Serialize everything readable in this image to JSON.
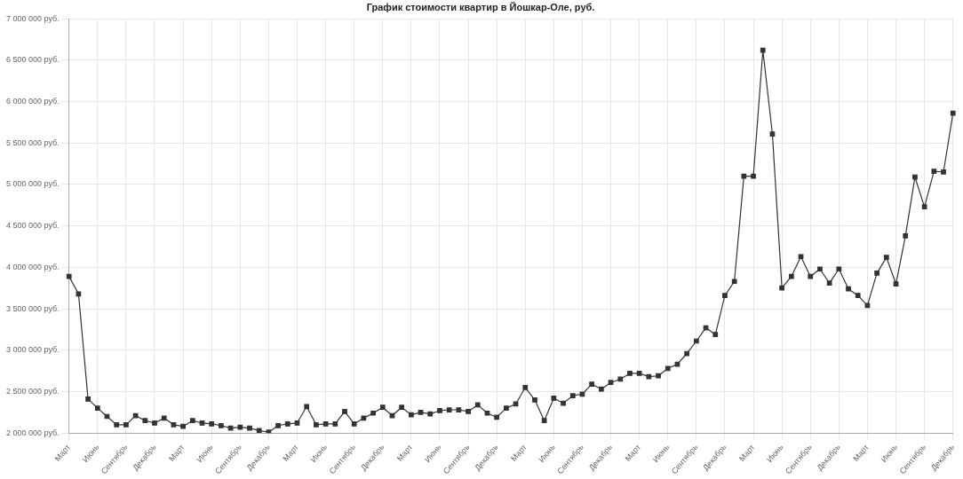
{
  "chart_data": {
    "type": "line",
    "title": "График стоимости квартир в Йошкар-Оле, руб.",
    "categories": [
      "Март",
      null,
      null,
      "Июнь",
      null,
      null,
      "Сентябрь",
      null,
      null,
      "Декабрь",
      null,
      null,
      "Март",
      null,
      null,
      "Июнь",
      null,
      null,
      "Сентябрь",
      null,
      null,
      "Декабрь",
      null,
      null,
      "Март",
      null,
      null,
      "Июнь",
      null,
      null,
      "Сентябрь",
      null,
      null,
      "Декабрь",
      null,
      null,
      "Март",
      null,
      null,
      "Июнь",
      null,
      null,
      "Сентябрь",
      null,
      null,
      "Декабрь",
      null,
      null,
      "Март",
      null,
      null,
      "Июнь",
      null,
      null,
      "Сентябрь",
      null,
      null,
      "Декабрь",
      null,
      null,
      "Март",
      null,
      null,
      "Июнь",
      null,
      null,
      "Сентябрь",
      null,
      null,
      "Декабрь",
      null,
      null,
      "Март",
      null,
      null,
      "Июнь",
      null,
      null,
      "Сентябрь",
      null,
      null,
      "Декабрь",
      null,
      null,
      "Март",
      null,
      null,
      "Июнь",
      null,
      null,
      "Сентябрь",
      null,
      null,
      "Декабрь"
    ],
    "series": [
      {
        "color": "#333333",
        "values": [
          3890000,
          3680000,
          2410000,
          2300000,
          2200000,
          2100000,
          2100000,
          2210000,
          2150000,
          2120000,
          2180000,
          2100000,
          2080000,
          2150000,
          2120000,
          2110000,
          2090000,
          2060000,
          2070000,
          2060000,
          2030000,
          2010000,
          2090000,
          2110000,
          2120000,
          2320000,
          2100000,
          2110000,
          2110000,
          2260000,
          2110000,
          2180000,
          2240000,
          2310000,
          2210000,
          2310000,
          2220000,
          2250000,
          2230000,
          2270000,
          2280000,
          2280000,
          2260000,
          2340000,
          2240000,
          2190000,
          2300000,
          2350000,
          2550000,
          2400000,
          2150000,
          2420000,
          2360000,
          2450000,
          2470000,
          2590000,
          2530000,
          2610000,
          2650000,
          2720000,
          2720000,
          2680000,
          2690000,
          2780000,
          2830000,
          2960000,
          3110000,
          3270000,
          3190000,
          3660000,
          3830000,
          5100000,
          5100000,
          6620000,
          5610000,
          3750000,
          3890000,
          4130000,
          3890000,
          3980000,
          3810000,
          3980000,
          3740000,
          3660000,
          3540000,
          3930000,
          4120000,
          3800000,
          4380000,
          5090000,
          4730000,
          5160000,
          5150000,
          5860000
        ]
      }
    ],
    "ylim": [
      2000000,
      7000000
    ],
    "yticks": [
      {
        "value": 2000000,
        "label": "2 000 000 руб."
      },
      {
        "value": 2500000,
        "label": "2 500 000 руб."
      },
      {
        "value": 3000000,
        "label": "3 000 000 руб."
      },
      {
        "value": 3500000,
        "label": "3 500 000 руб."
      },
      {
        "value": 4000000,
        "label": "4 000 000 руб."
      },
      {
        "value": 4500000,
        "label": "4 500 000 руб."
      },
      {
        "value": 5000000,
        "label": "5 000 000 руб."
      },
      {
        "value": 5500000,
        "label": "5 500 000 руб."
      },
      {
        "value": 6000000,
        "label": "6 000 000 руб."
      },
      {
        "value": 6500000,
        "label": "6 500 000 руб."
      },
      {
        "value": 7000000,
        "label": "7 000 000 руб."
      }
    ],
    "grid": true,
    "legend": false,
    "marker": "square",
    "line_style": "solid"
  }
}
